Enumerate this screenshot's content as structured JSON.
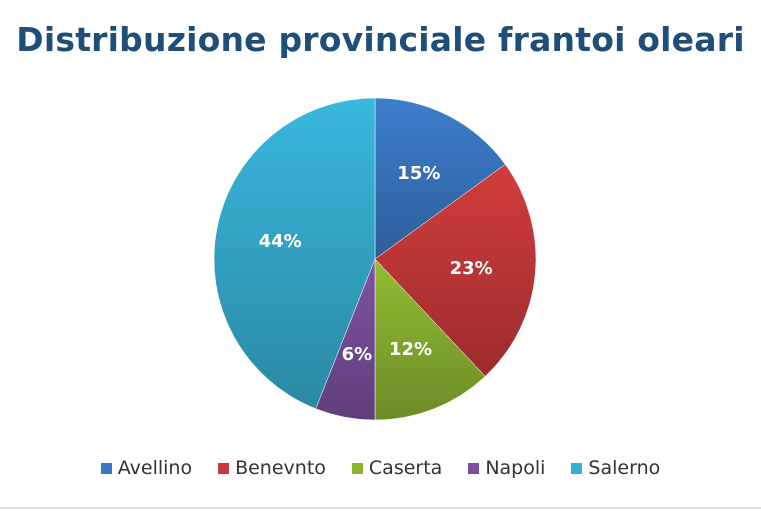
{
  "chart_data": {
    "type": "pie",
    "title": "Distribuzione provinciale frantoi oleari",
    "categories": [
      "Avellino",
      "Benevnto",
      "Caserta",
      "Napoli",
      "Salerno"
    ],
    "values": [
      15,
      23,
      12,
      6,
      44
    ],
    "labels": [
      "15%",
      "23%",
      "12%",
      "6%",
      "44%"
    ],
    "colors": [
      "#3a78c4",
      "#c8393a",
      "#8bb431",
      "#7a4f9c",
      "#36afd2"
    ],
    "legend_position": "bottom"
  }
}
